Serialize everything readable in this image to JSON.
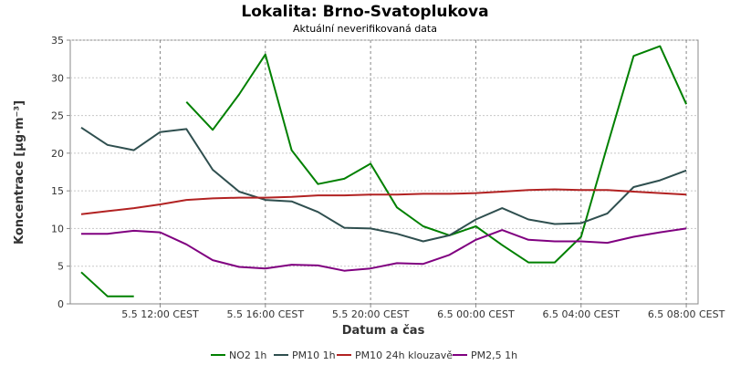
{
  "chart_data": {
    "type": "line",
    "title": "Lokalita: Brno-Svatoplukova",
    "subtitle": "Aktuální neverifikovaná data",
    "xlabel": "Datum a čas",
    "ylabel": "Koncentrace [µg·m⁻³]",
    "x": [
      "5.5 09:00",
      "5.5 10:00",
      "5.5 11:00",
      "5.5 12:00",
      "5.5 13:00",
      "5.5 14:00",
      "5.5 15:00",
      "5.5 16:00",
      "5.5 17:00",
      "5.5 18:00",
      "5.5 19:00",
      "5.5 20:00",
      "5.5 21:00",
      "5.5 22:00",
      "5.5 23:00",
      "6.5 00:00",
      "6.5 01:00",
      "6.5 02:00",
      "6.5 03:00",
      "6.5 04:00",
      "6.5 05:00",
      "6.5 06:00",
      "6.5 07:00",
      "6.5 08:00"
    ],
    "x_tick_labels": [
      "5.5 12:00 CEST",
      "5.5 16:00 CEST",
      "5.5 20:00 CEST",
      "6.5 00:00 CEST",
      "6.5 04:00 CEST",
      "6.5 08:00 CEST"
    ],
    "x_tick_index": [
      3,
      7,
      11,
      15,
      19,
      23
    ],
    "ylim": [
      0,
      35
    ],
    "y_ticks": [
      0,
      5,
      10,
      15,
      20,
      25,
      30,
      35
    ],
    "grid": true,
    "legend_position": "bottom",
    "series": [
      {
        "name": "NO2 1h",
        "color": "#008000",
        "values": [
          4.2,
          1.0,
          1.0,
          null,
          26.8,
          23.1,
          27.8,
          33.1,
          20.4,
          15.9,
          16.6,
          18.6,
          12.8,
          10.3,
          9.1,
          10.3,
          7.8,
          5.5,
          5.5,
          8.9,
          21.0,
          32.9,
          34.2,
          26.5
        ]
      },
      {
        "name": "PM10 1h",
        "color": "#2f4f4f",
        "values": [
          23.4,
          21.1,
          20.4,
          22.8,
          23.2,
          17.8,
          14.9,
          13.8,
          13.6,
          12.2,
          10.1,
          10.0,
          9.3,
          8.3,
          9.1,
          11.2,
          12.7,
          11.2,
          10.6,
          10.7,
          12.0,
          15.5,
          16.4,
          17.7
        ]
      },
      {
        "name": "PM10 24h klouzavě",
        "color": "#b22222",
        "values": [
          11.9,
          12.3,
          12.7,
          13.2,
          13.8,
          14.0,
          14.1,
          14.1,
          14.2,
          14.4,
          14.4,
          14.5,
          14.5,
          14.6,
          14.6,
          14.7,
          14.9,
          15.1,
          15.2,
          15.1,
          15.1,
          14.9,
          14.7,
          14.5
        ]
      },
      {
        "name": "PM2,5 1h",
        "color": "#800080",
        "values": [
          9.3,
          9.3,
          9.7,
          9.5,
          7.9,
          5.8,
          4.9,
          4.7,
          5.2,
          5.1,
          4.4,
          4.7,
          5.4,
          5.3,
          6.5,
          8.5,
          9.8,
          8.5,
          8.3,
          8.3,
          8.1,
          8.9,
          9.5,
          10.0
        ]
      }
    ]
  }
}
